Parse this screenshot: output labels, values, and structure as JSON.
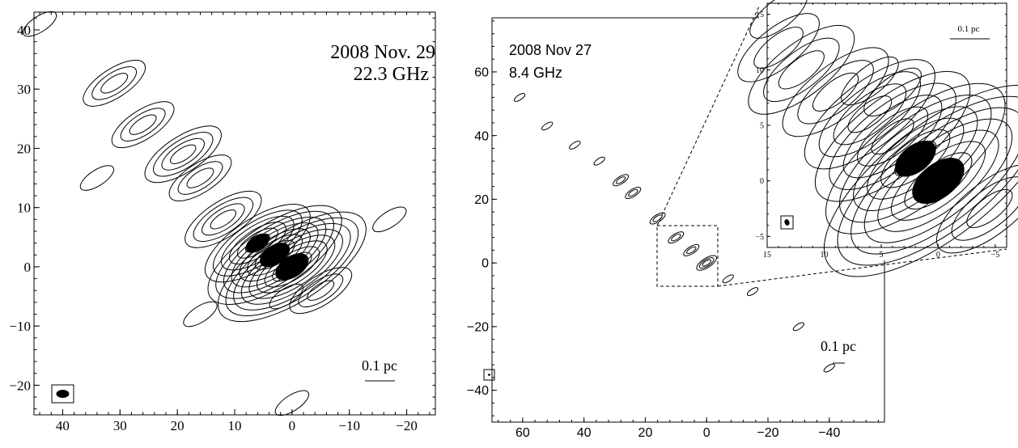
{
  "chart_data": [
    {
      "type": "contour",
      "panel": "left",
      "title_line1": "2008 Nov. 29",
      "title_line2": "22.3 GHz",
      "xticks": [
        40,
        30,
        20,
        10,
        0,
        -10,
        -20
      ],
      "yticks": [
        40,
        30,
        20,
        10,
        0,
        -10,
        -20
      ],
      "xlim": [
        45,
        -25
      ],
      "ylim": [
        -25,
        43
      ],
      "scale_bar_label": "0.1 pc",
      "grid": false,
      "jet_components": [
        {
          "x": 0,
          "y": 0,
          "levels": 9
        },
        {
          "x": 3,
          "y": 2,
          "levels": 8
        },
        {
          "x": 6,
          "y": 4,
          "levels": 6
        },
        {
          "x": 12,
          "y": 8,
          "levels": 4
        },
        {
          "x": 16,
          "y": 15,
          "levels": 3
        },
        {
          "x": 19,
          "y": 19,
          "levels": 4
        },
        {
          "x": 26,
          "y": 24,
          "levels": 3
        },
        {
          "x": 31,
          "y": 31,
          "levels": 3
        },
        {
          "x": 44,
          "y": 41,
          "levels": 1
        },
        {
          "x": -5,
          "y": -4,
          "levels": 3
        },
        {
          "x": 34,
          "y": 15,
          "levels": 1
        },
        {
          "x": 16,
          "y": -8,
          "levels": 1
        },
        {
          "x": 0,
          "y": -23,
          "levels": 1
        },
        {
          "x": -17,
          "y": 8,
          "levels": 1
        },
        {
          "x": 1,
          "y": -5,
          "levels": 1
        }
      ]
    },
    {
      "type": "contour",
      "panel": "middle",
      "title_line1": "2008 Nov 27",
      "title_line2": "8.4 GHz",
      "xticks": [
        60,
        40,
        20,
        0,
        -20,
        -40
      ],
      "yticks": [
        60,
        40,
        20,
        0,
        -20,
        -40
      ],
      "xlim": [
        70,
        -58
      ],
      "ylim": [
        -50,
        77
      ],
      "scale_bar_label": "0.1 pc",
      "grid": false,
      "jet_components": [
        {
          "x": 0,
          "y": 0,
          "levels": 3
        },
        {
          "x": 5,
          "y": 4,
          "levels": 2
        },
        {
          "x": 10,
          "y": 8,
          "levels": 2
        },
        {
          "x": 16,
          "y": 14,
          "levels": 2
        },
        {
          "x": 24,
          "y": 22,
          "levels": 2
        },
        {
          "x": 28,
          "y": 26,
          "levels": 2
        },
        {
          "x": 35,
          "y": 32,
          "levels": 1
        },
        {
          "x": 43,
          "y": 37,
          "levels": 1
        },
        {
          "x": 52,
          "y": 43,
          "levels": 1
        },
        {
          "x": 61,
          "y": 52,
          "levels": 1
        },
        {
          "x": -7,
          "y": -5,
          "levels": 1
        },
        {
          "x": -15,
          "y": -9,
          "levels": 1
        },
        {
          "x": -30,
          "y": -20,
          "levels": 1
        },
        {
          "x": -40,
          "y": -33,
          "levels": 1
        }
      ]
    },
    {
      "type": "contour",
      "panel": "inset",
      "xticks": [
        15,
        10,
        5,
        0,
        -5
      ],
      "yticks": [
        15,
        10,
        5,
        0,
        -5
      ],
      "xlim": [
        15,
        -6
      ],
      "ylim": [
        -6,
        16
      ],
      "scale_bar_label": "0.1 pc",
      "grid": false,
      "jet_components": [
        {
          "x": 0,
          "y": 0,
          "levels": 8
        },
        {
          "x": 2,
          "y": 2,
          "levels": 6
        },
        {
          "x": 4,
          "y": 4,
          "levels": 5
        },
        {
          "x": 6,
          "y": 6,
          "levels": 4
        },
        {
          "x": 9,
          "y": 8,
          "levels": 3
        },
        {
          "x": 12,
          "y": 10,
          "levels": 3
        },
        {
          "x": 14,
          "y": 12,
          "levels": 2
        },
        {
          "x": 14,
          "y": 15,
          "levels": 1
        },
        {
          "x": -4.5,
          "y": -2.5,
          "levels": 3
        },
        {
          "x": 6,
          "y": 9,
          "levels": 1
        },
        {
          "x": 4,
          "y": 8,
          "levels": 1
        }
      ]
    }
  ]
}
